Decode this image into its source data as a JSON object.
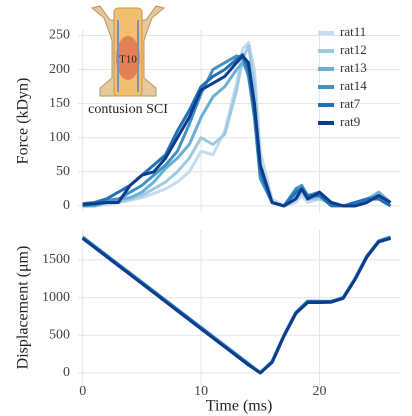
{
  "chart_data": [
    {
      "type": "line",
      "y_label": "Force (kDyn)",
      "inset_labels": [
        "T10",
        "contusion SCI"
      ],
      "x": [
        0,
        1,
        2,
        3,
        4,
        5,
        6,
        7,
        8,
        9,
        10,
        11,
        12,
        13,
        13.5,
        14,
        14.5,
        15,
        16,
        17,
        18,
        18.5,
        19,
        20,
        21,
        22,
        23,
        24,
        25,
        26
      ],
      "series": [
        {
          "name": "rat11",
          "color": "#c6dbef",
          "values": [
            0,
            0,
            2,
            5,
            8,
            12,
            18,
            25,
            35,
            50,
            80,
            75,
            110,
            180,
            230,
            240,
            200,
            80,
            10,
            0,
            5,
            15,
            5,
            10,
            5,
            0,
            0,
            10,
            20,
            5
          ]
        },
        {
          "name": "rat12",
          "color": "#9ecae1",
          "values": [
            0,
            0,
            5,
            5,
            10,
            15,
            25,
            35,
            50,
            70,
            100,
            90,
            105,
            170,
            215,
            235,
            180,
            60,
            5,
            0,
            10,
            20,
            10,
            10,
            5,
            0,
            0,
            10,
            20,
            5
          ]
        },
        {
          "name": "rat13",
          "color": "#6baed6",
          "values": [
            0,
            0,
            5,
            10,
            12,
            20,
            35,
            55,
            70,
            90,
            130,
            160,
            175,
            200,
            210,
            195,
            140,
            50,
            5,
            0,
            15,
            25,
            10,
            15,
            5,
            0,
            0,
            5,
            20,
            5
          ]
        },
        {
          "name": "rat14",
          "color": "#4292c6",
          "values": [
            0,
            2,
            8,
            10,
            20,
            30,
            45,
            60,
            80,
            120,
            165,
            200,
            210,
            220,
            218,
            190,
            130,
            40,
            5,
            0,
            25,
            30,
            15,
            20,
            5,
            0,
            0,
            10,
            15,
            5
          ]
        },
        {
          "name": "rat7",
          "color": "#2171b5",
          "values": [
            3,
            5,
            10,
            20,
            30,
            45,
            60,
            75,
            110,
            140,
            175,
            190,
            200,
            215,
            222,
            200,
            140,
            50,
            5,
            0,
            20,
            25,
            15,
            15,
            0,
            0,
            5,
            10,
            10,
            0
          ]
        },
        {
          "name": "rat9",
          "color": "#0b3d8c",
          "values": [
            2,
            3,
            5,
            5,
            30,
            45,
            50,
            70,
            100,
            130,
            170,
            180,
            190,
            210,
            220,
            210,
            150,
            60,
            5,
            0,
            10,
            25,
            10,
            20,
            5,
            0,
            0,
            5,
            15,
            5
          ]
        }
      ],
      "xlim": [
        -0.4,
        26.8
      ],
      "xticks": [
        0,
        10,
        20
      ],
      "show_xtick_labels": false,
      "ylim": [
        -9,
        258
      ],
      "yticks": [
        0,
        50,
        100,
        150,
        200,
        250
      ],
      "grid": true,
      "legend": "top-right"
    },
    {
      "type": "line",
      "x_label": "Time (ms)",
      "y_label": "Displacement (μm)",
      "x": [
        0,
        2,
        4,
        6,
        8,
        10,
        12,
        14,
        15,
        16,
        17,
        18,
        19,
        20,
        21,
        22,
        23,
        24,
        25,
        26
      ],
      "series": [
        {
          "color": "#c6dbef",
          "values": [
            1810,
            1570,
            1330,
            1090,
            850,
            610,
            370,
            130,
            10,
            160,
            510,
            810,
            960,
            955,
            950,
            1005,
            1260,
            1560,
            1760,
            1810
          ]
        },
        {
          "color": "#9ecae1",
          "values": [
            1800,
            1565,
            1325,
            1085,
            845,
            605,
            365,
            125,
            5,
            150,
            500,
            800,
            950,
            950,
            950,
            1000,
            1250,
            1550,
            1750,
            1800
          ]
        },
        {
          "color": "#6baed6",
          "values": [
            1795,
            1555,
            1315,
            1075,
            835,
            595,
            355,
            115,
            0,
            145,
            495,
            795,
            945,
            945,
            945,
            995,
            1245,
            1545,
            1745,
            1795
          ]
        },
        {
          "color": "#4292c6",
          "values": [
            1790,
            1550,
            1310,
            1070,
            830,
            590,
            350,
            110,
            0,
            140,
            490,
            790,
            940,
            940,
            940,
            990,
            1240,
            1540,
            1740,
            1790
          ]
        },
        {
          "color": "#2171b5",
          "values": [
            1800,
            1560,
            1320,
            1080,
            840,
            600,
            360,
            120,
            0,
            150,
            500,
            800,
            950,
            950,
            950,
            1000,
            1250,
            1550,
            1750,
            1800
          ]
        },
        {
          "color": "#0b3d8c",
          "values": [
            1785,
            1545,
            1305,
            1065,
            825,
            585,
            345,
            105,
            0,
            140,
            490,
            790,
            935,
            935,
            940,
            990,
            1240,
            1540,
            1740,
            1785
          ]
        }
      ],
      "xlim": [
        -0.4,
        26.8
      ],
      "xticks": [
        0,
        10,
        20
      ],
      "show_xtick_labels": true,
      "ylim": [
        -160,
        1897
      ],
      "yticks": [
        0,
        500,
        1000,
        1500
      ],
      "grid": true
    }
  ]
}
